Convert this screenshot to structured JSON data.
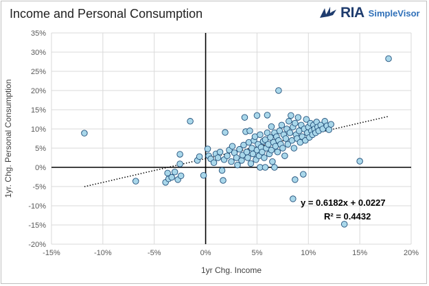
{
  "header": {
    "title": "Income and Personal Consumption",
    "logo_text": "RIA",
    "logo_sub": "SimpleVisor"
  },
  "chart_data": {
    "type": "scatter",
    "title": "Income and Personal Consumption",
    "xlabel": "1yr Chg. Income",
    "ylabel": "1yr. Chg. Personal Consumption",
    "xlim": [
      -0.15,
      0.2
    ],
    "ylim": [
      -0.2,
      0.35
    ],
    "x_ticks": [
      -0.15,
      -0.1,
      -0.05,
      0,
      0.05,
      0.1,
      0.15,
      0.2
    ],
    "x_tick_labels": [
      "-15%",
      "-10%",
      "-5%",
      "0%",
      "5%",
      "10%",
      "15%",
      "20%"
    ],
    "y_ticks": [
      -0.2,
      -0.15,
      -0.1,
      -0.05,
      0,
      0.05,
      0.1,
      0.15,
      0.2,
      0.25,
      0.3,
      0.35
    ],
    "y_tick_labels": [
      "-20%",
      "-15%",
      "-10%",
      "-5%",
      "0%",
      "5%",
      "10%",
      "15%",
      "20%",
      "25%",
      "30%",
      "35%"
    ],
    "grid": true,
    "trendline": {
      "slope": 0.6182,
      "intercept": 0.0227,
      "x_range": [
        -0.118,
        0.178
      ],
      "equation_label": "y = 0.6182x + 0.0227",
      "r2_label": "R² = 0.4432"
    },
    "marker_color": "#a9d7ea",
    "marker_edge": "#1f4e79",
    "points": [
      [
        -0.118,
        0.089
      ],
      [
        -0.068,
        -0.036
      ],
      [
        -0.039,
        -0.039
      ],
      [
        -0.037,
        -0.015
      ],
      [
        -0.036,
        -0.03
      ],
      [
        -0.033,
        -0.026
      ],
      [
        -0.03,
        -0.012
      ],
      [
        -0.027,
        -0.032
      ],
      [
        -0.025,
        0.009
      ],
      [
        -0.025,
        0.034
      ],
      [
        -0.024,
        -0.022
      ],
      [
        -0.015,
        0.12
      ],
      [
        -0.008,
        0.018
      ],
      [
        -0.006,
        0.028
      ],
      [
        -0.002,
        -0.021
      ],
      [
        0.002,
        0.048
      ],
      [
        0.003,
        0.03
      ],
      [
        0.005,
        0.022
      ],
      [
        0.008,
        0.012
      ],
      [
        0.01,
        0.035
      ],
      [
        0.012,
        0.025
      ],
      [
        0.014,
        0.04
      ],
      [
        0.016,
        -0.008
      ],
      [
        0.017,
        -0.034
      ],
      [
        0.018,
        0.02
      ],
      [
        0.019,
        0.091
      ],
      [
        0.021,
        0.03
      ],
      [
        0.023,
        0.045
      ],
      [
        0.025,
        0.015
      ],
      [
        0.026,
        0.055
      ],
      [
        0.028,
        0.038
      ],
      [
        0.03,
        0.025
      ],
      [
        0.031,
        0.006
      ],
      [
        0.033,
        0.047
      ],
      [
        0.035,
        0.018
      ],
      [
        0.036,
        0.032
      ],
      [
        0.037,
        0.058
      ],
      [
        0.038,
        0.13
      ],
      [
        0.039,
        0.093
      ],
      [
        0.04,
        0.04
      ],
      [
        0.041,
        0.025
      ],
      [
        0.042,
        0.065
      ],
      [
        0.043,
        0.095
      ],
      [
        0.044,
        0.01
      ],
      [
        0.045,
        0.05
      ],
      [
        0.046,
        0.035
      ],
      [
        0.047,
        0.07
      ],
      [
        0.048,
        0.08
      ],
      [
        0.049,
        0.02
      ],
      [
        0.05,
        0.045
      ],
      [
        0.05,
        0.135
      ],
      [
        0.051,
        0.06
      ],
      [
        0.052,
        0.03
      ],
      [
        0.053,
        0.085
      ],
      [
        0.053,
        0.0
      ],
      [
        0.054,
        0.052
      ],
      [
        0.055,
        0.04
      ],
      [
        0.056,
        0.068
      ],
      [
        0.057,
        0.025
      ],
      [
        0.058,
        0.072
      ],
      [
        0.058,
        0.0
      ],
      [
        0.059,
        0.05
      ],
      [
        0.06,
        0.09
      ],
      [
        0.06,
        0.136
      ],
      [
        0.061,
        0.06
      ],
      [
        0.062,
        0.035
      ],
      [
        0.063,
        0.078
      ],
      [
        0.064,
        0.045
      ],
      [
        0.064,
        0.106
      ],
      [
        0.065,
        0.015
      ],
      [
        0.066,
        0.065
      ],
      [
        0.067,
        0.09
      ],
      [
        0.067,
        0.0
      ],
      [
        0.068,
        0.055
      ],
      [
        0.069,
        0.08
      ],
      [
        0.07,
        0.04
      ],
      [
        0.071,
        0.07
      ],
      [
        0.071,
        0.2
      ],
      [
        0.072,
        0.095
      ],
      [
        0.073,
        0.06
      ],
      [
        0.074,
        0.11
      ],
      [
        0.075,
        0.05
      ],
      [
        0.076,
        0.085
      ],
      [
        0.077,
        0.03
      ],
      [
        0.078,
        0.075
      ],
      [
        0.079,
        0.1
      ],
      [
        0.08,
        0.06
      ],
      [
        0.081,
        0.12
      ],
      [
        0.082,
        0.09
      ],
      [
        0.083,
        0.135
      ],
      [
        0.084,
        0.07
      ],
      [
        0.085,
        0.105
      ],
      [
        0.085,
        -0.082
      ],
      [
        0.086,
        0.05
      ],
      [
        0.087,
        0.115
      ],
      [
        0.087,
        -0.032
      ],
      [
        0.088,
        0.085
      ],
      [
        0.089,
        0.075
      ],
      [
        0.09,
        0.13
      ],
      [
        0.091,
        0.095
      ],
      [
        0.092,
        0.065
      ],
      [
        0.093,
        0.11
      ],
      [
        0.094,
        0.08
      ],
      [
        0.095,
        -0.018
      ],
      [
        0.096,
        0.1
      ],
      [
        0.097,
        0.07
      ],
      [
        0.098,
        0.125
      ],
      [
        0.099,
        0.09
      ],
      [
        0.1,
        0.105
      ],
      [
        0.101,
        0.078
      ],
      [
        0.102,
        0.115
      ],
      [
        0.103,
        0.095
      ],
      [
        0.104,
        0.085
      ],
      [
        0.105,
        0.11
      ],
      [
        0.106,
        0.1
      ],
      [
        0.107,
        0.09
      ],
      [
        0.108,
        0.118
      ],
      [
        0.109,
        0.105
      ],
      [
        0.11,
        0.095
      ],
      [
        0.112,
        0.11
      ],
      [
        0.114,
        0.1
      ],
      [
        0.116,
        0.12
      ],
      [
        0.118,
        0.108
      ],
      [
        0.12,
        0.098
      ],
      [
        0.122,
        0.112
      ],
      [
        0.135,
        -0.148
      ],
      [
        0.15,
        0.016
      ],
      [
        0.178,
        0.283
      ]
    ]
  }
}
